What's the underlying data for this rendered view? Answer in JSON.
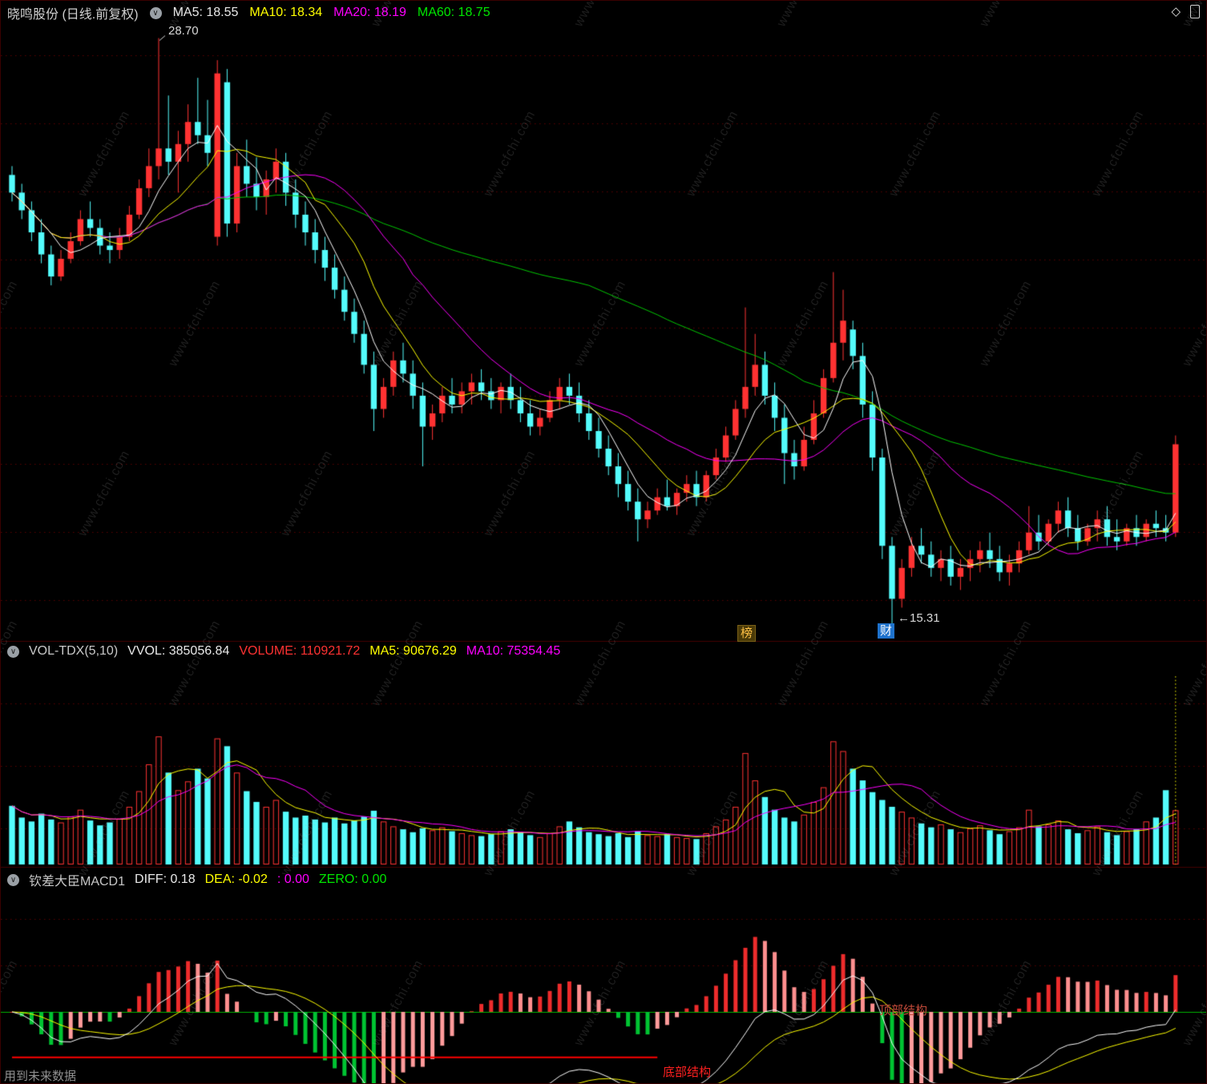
{
  "watermark": "www.cfchi.com",
  "icons": {
    "collapse": "∨",
    "diamond": "◇"
  },
  "main_header": {
    "title": "晓鸣股份 (日线.前复权)",
    "items": [
      {
        "label": "MA5: 18.55",
        "color": "#e8e8e8"
      },
      {
        "label": "MA10: 18.34",
        "color": "#ffff00"
      },
      {
        "label": "MA20: 18.19",
        "color": "#ff00ff"
      },
      {
        "label": "MA60: 18.75",
        "color": "#00e600"
      }
    ]
  },
  "volume_header": {
    "items": [
      {
        "label": "VOL-TDX(5,10)",
        "color": "#c8c8c8"
      },
      {
        "label": "VVOL: 385056.84",
        "color": "#e8e8e8"
      },
      {
        "label": "VOLUME: 110921.72",
        "color": "#ff3232"
      },
      {
        "label": "MA5: 90676.29",
        "color": "#ffff00"
      },
      {
        "label": "MA10: 75354.45",
        "color": "#ff00ff"
      }
    ]
  },
  "macd_header": {
    "items": [
      {
        "label": "钦差大臣MACD1",
        "color": "#c8c8c8"
      },
      {
        "label": "DIFF: 0.18",
        "color": "#e8e8e8"
      },
      {
        "label": "DEA: -0.02",
        "color": "#ffff00"
      },
      {
        "label": ": 0.00",
        "color": "#ff00ff"
      },
      {
        "label": "ZERO: 0.00",
        "color": "#00e600"
      }
    ]
  },
  "overlays": {
    "high_label": "28.70",
    "low_label": "←15.31",
    "badge_rank": "榜",
    "badge_finance": "财",
    "bottom_structure": "底部结构",
    "top_structure": "顶部结构",
    "future_data_note": "用到未来数据"
  },
  "colors": {
    "background": "#000000",
    "grid": "#5c0000",
    "separator": "#460000",
    "up": "#ff3232",
    "down": "#54fcfc",
    "ma5": "#ffffff",
    "ma10": "#ffff00",
    "ma20": "#ff00ff",
    "ma60": "#00c800",
    "vol_ma5": "#ffff00",
    "vol_ma10": "#ff00ff",
    "vvol_line": "#ffff00",
    "hist_pos_rise": "#ee2c2c",
    "hist_pos_fall": "#ff8f8f",
    "hist_neg_fall": "#00c432",
    "hist_neg_rise": "#ff9c9c",
    "diff_line": "#ffffff",
    "dea_line": "#ffff00",
    "zero_line": "#00b400",
    "structure_line": "#ff0000",
    "annotation": "#d8d8d8"
  },
  "chart_data": [
    {
      "type": "candlestick",
      "title": "晓鸣股份 日线 前复权",
      "ylim": [
        15.1,
        29.0
      ],
      "ma_periods": [
        5,
        10,
        20,
        60
      ],
      "ma_values": {
        "ma5": 18.55,
        "ma10": 18.34,
        "ma20": 18.19,
        "ma60": 18.75
      },
      "annotations": [
        {
          "index": 15,
          "price": 28.7,
          "text": "28.70",
          "pos": "high"
        },
        {
          "index": 90,
          "price": 15.31,
          "text": "15.31",
          "pos": "low"
        }
      ],
      "event_badges": [
        {
          "index": 75,
          "text": "榜"
        },
        {
          "index": 89,
          "text": "财"
        }
      ],
      "ohlc": [
        [
          25.6,
          25.8,
          25.0,
          25.2
        ],
        [
          25.2,
          25.4,
          24.6,
          24.8
        ],
        [
          24.8,
          25.0,
          24.1,
          24.3
        ],
        [
          24.3,
          24.6,
          23.6,
          23.8
        ],
        [
          23.8,
          24.0,
          23.1,
          23.3
        ],
        [
          23.3,
          23.9,
          23.2,
          23.7
        ],
        [
          23.7,
          24.3,
          23.6,
          24.1
        ],
        [
          24.1,
          24.8,
          24.0,
          24.6
        ],
        [
          24.6,
          25.0,
          24.2,
          24.4
        ],
        [
          24.4,
          24.6,
          23.8,
          24.0
        ],
        [
          24.0,
          24.3,
          23.6,
          23.9
        ],
        [
          23.9,
          24.4,
          23.7,
          24.2
        ],
        [
          24.2,
          24.9,
          24.1,
          24.7
        ],
        [
          24.7,
          25.5,
          24.6,
          25.3
        ],
        [
          25.3,
          26.2,
          25.1,
          25.8
        ],
        [
          25.8,
          28.7,
          25.5,
          26.2
        ],
        [
          26.2,
          27.4,
          25.6,
          25.9
        ],
        [
          25.9,
          26.6,
          25.2,
          26.3
        ],
        [
          26.3,
          27.2,
          25.9,
          26.8
        ],
        [
          26.8,
          27.8,
          26.3,
          26.5
        ],
        [
          26.5,
          27.3,
          25.8,
          26.1
        ],
        [
          24.2,
          28.2,
          24.0,
          27.9
        ],
        [
          27.7,
          28.0,
          24.2,
          24.5
        ],
        [
          24.5,
          26.1,
          24.3,
          25.8
        ],
        [
          25.8,
          26.4,
          25.1,
          25.4
        ],
        [
          25.4,
          26.0,
          24.8,
          25.1
        ],
        [
          25.1,
          25.7,
          24.7,
          25.5
        ],
        [
          25.5,
          26.2,
          25.2,
          25.9
        ],
        [
          25.9,
          26.1,
          24.9,
          25.2
        ],
        [
          25.2,
          25.5,
          24.4,
          24.7
        ],
        [
          24.7,
          25.0,
          24.0,
          24.3
        ],
        [
          24.3,
          24.6,
          23.6,
          23.9
        ],
        [
          23.9,
          24.2,
          23.2,
          23.5
        ],
        [
          23.5,
          23.8,
          22.8,
          23.0
        ],
        [
          23.0,
          23.3,
          22.3,
          22.5
        ],
        [
          22.5,
          22.8,
          21.8,
          22.0
        ],
        [
          22.0,
          22.3,
          21.1,
          21.3
        ],
        [
          21.3,
          21.6,
          19.8,
          20.3
        ],
        [
          20.3,
          21.0,
          20.1,
          20.8
        ],
        [
          20.8,
          21.6,
          20.6,
          21.4
        ],
        [
          21.4,
          21.8,
          20.9,
          21.1
        ],
        [
          21.1,
          21.4,
          20.3,
          20.6
        ],
        [
          20.6,
          20.9,
          19.0,
          19.9
        ],
        [
          19.9,
          20.4,
          19.6,
          20.2
        ],
        [
          20.2,
          20.8,
          20.0,
          20.6
        ],
        [
          20.6,
          21.0,
          20.2,
          20.4
        ],
        [
          20.4,
          20.9,
          20.2,
          20.7
        ],
        [
          20.7,
          21.1,
          20.4,
          20.9
        ],
        [
          20.9,
          21.2,
          20.5,
          20.7
        ],
        [
          20.7,
          21.0,
          20.3,
          20.5
        ],
        [
          20.5,
          20.9,
          20.2,
          20.8
        ],
        [
          20.8,
          21.1,
          20.3,
          20.5
        ],
        [
          20.5,
          20.8,
          20.0,
          20.2
        ],
        [
          20.2,
          20.5,
          19.7,
          19.9
        ],
        [
          19.9,
          20.3,
          19.7,
          20.1
        ],
        [
          20.1,
          20.7,
          20.0,
          20.5
        ],
        [
          20.5,
          21.0,
          20.3,
          20.8
        ],
        [
          20.8,
          21.1,
          20.4,
          20.6
        ],
        [
          20.6,
          20.9,
          20.0,
          20.2
        ],
        [
          20.2,
          20.5,
          19.6,
          19.8
        ],
        [
          19.8,
          20.1,
          19.2,
          19.4
        ],
        [
          19.4,
          19.7,
          18.8,
          19.0
        ],
        [
          19.0,
          19.3,
          18.3,
          18.6
        ],
        [
          18.6,
          18.9,
          18.0,
          18.2
        ],
        [
          18.2,
          18.5,
          17.3,
          17.8
        ],
        [
          17.8,
          18.2,
          17.6,
          18.0
        ],
        [
          18.0,
          18.5,
          17.9,
          18.3
        ],
        [
          18.3,
          18.7,
          18.0,
          18.1
        ],
        [
          18.1,
          18.5,
          17.9,
          18.4
        ],
        [
          18.4,
          18.8,
          18.2,
          18.6
        ],
        [
          18.6,
          18.9,
          18.1,
          18.3
        ],
        [
          18.3,
          18.9,
          18.2,
          18.8
        ],
        [
          18.8,
          19.4,
          18.7,
          19.2
        ],
        [
          19.2,
          19.9,
          19.1,
          19.7
        ],
        [
          19.7,
          20.5,
          19.6,
          20.3
        ],
        [
          20.3,
          22.6,
          20.1,
          20.8
        ],
        [
          20.8,
          22.0,
          20.6,
          21.3
        ],
        [
          21.3,
          21.6,
          20.4,
          20.6
        ],
        [
          20.6,
          20.9,
          19.8,
          20.1
        ],
        [
          20.1,
          20.4,
          18.6,
          19.3
        ],
        [
          19.3,
          19.6,
          18.7,
          19.0
        ],
        [
          19.0,
          19.9,
          18.9,
          19.6
        ],
        [
          19.6,
          20.5,
          19.5,
          20.2
        ],
        [
          20.2,
          21.2,
          20.1,
          21.0
        ],
        [
          21.0,
          23.4,
          20.9,
          21.8
        ],
        [
          21.8,
          23.0,
          21.4,
          22.3
        ],
        [
          22.1,
          22.3,
          21.2,
          21.5
        ],
        [
          21.5,
          21.8,
          20.1,
          20.4
        ],
        [
          20.4,
          20.7,
          18.9,
          19.2
        ],
        [
          19.2,
          19.4,
          16.9,
          17.2
        ],
        [
          17.2,
          17.4,
          15.31,
          16.0
        ],
        [
          16.0,
          16.9,
          15.8,
          16.7
        ],
        [
          16.7,
          17.4,
          16.5,
          17.2
        ],
        [
          17.2,
          17.6,
          16.8,
          17.0
        ],
        [
          17.0,
          17.3,
          16.5,
          16.7
        ],
        [
          16.7,
          17.1,
          16.4,
          16.9
        ],
        [
          16.9,
          17.2,
          16.3,
          16.5
        ],
        [
          16.5,
          16.9,
          16.2,
          16.7
        ],
        [
          16.7,
          17.1,
          16.4,
          16.9
        ],
        [
          16.9,
          17.3,
          16.6,
          17.1
        ],
        [
          17.1,
          17.5,
          16.7,
          16.9
        ],
        [
          16.9,
          17.2,
          16.4,
          16.6
        ],
        [
          16.6,
          17.0,
          16.3,
          16.8
        ],
        [
          16.8,
          17.3,
          16.6,
          17.1
        ],
        [
          17.1,
          18.1,
          17.0,
          17.5
        ],
        [
          17.5,
          17.9,
          17.1,
          17.3
        ],
        [
          17.3,
          17.8,
          17.2,
          17.7
        ],
        [
          17.7,
          18.2,
          17.5,
          18.0
        ],
        [
          18.0,
          18.3,
          17.4,
          17.6
        ],
        [
          17.6,
          17.9,
          17.1,
          17.3
        ],
        [
          17.3,
          17.7,
          17.2,
          17.6
        ],
        [
          17.6,
          18.0,
          17.3,
          17.8
        ],
        [
          17.8,
          18.1,
          17.2,
          17.4
        ],
        [
          17.4,
          17.8,
          17.1,
          17.3
        ],
        [
          17.3,
          17.7,
          17.2,
          17.6
        ],
        [
          17.6,
          17.9,
          17.2,
          17.4
        ],
        [
          17.4,
          17.8,
          17.3,
          17.7
        ],
        [
          17.7,
          18.0,
          17.4,
          17.6
        ],
        [
          17.6,
          17.9,
          17.3,
          17.5
        ],
        [
          17.5,
          19.7,
          17.4,
          19.5
        ]
      ]
    },
    {
      "type": "bar",
      "name": "VOL-TDX(5,10)",
      "vvol": 385056.84,
      "volume": 110921.72,
      "ma5": 90676.29,
      "ma10": 75354.45,
      "ma_periods": [
        5,
        10
      ],
      "ylim": [
        0,
        400000
      ],
      "values": [
        120000,
        96000,
        88000,
        104000,
        92000,
        86000,
        98000,
        112000,
        90000,
        80000,
        86000,
        94000,
        118000,
        150000,
        205000,
        262000,
        188000,
        152000,
        170000,
        196000,
        176000,
        258000,
        242000,
        188000,
        150000,
        128000,
        118000,
        132000,
        108000,
        96000,
        100000,
        92000,
        86000,
        96000,
        84000,
        90000,
        98000,
        110000,
        88000,
        78000,
        72000,
        66000,
        74000,
        70000,
        76000,
        68000,
        64000,
        60000,
        58000,
        62000,
        68000,
        72000,
        66000,
        60000,
        56000,
        64000,
        78000,
        88000,
        76000,
        66000,
        62000,
        58000,
        64000,
        56000,
        68000,
        60000,
        58000,
        62000,
        56000,
        54000,
        52000,
        64000,
        78000,
        92000,
        118000,
        228000,
        172000,
        138000,
        112000,
        96000,
        88000,
        102000,
        128000,
        158000,
        252000,
        232000,
        196000,
        172000,
        148000,
        132000,
        118000,
        108000,
        96000,
        84000,
        76000,
        82000,
        72000,
        66000,
        74000,
        80000,
        70000,
        62000,
        68000,
        76000,
        112000,
        78000,
        82000,
        90000,
        72000,
        64000,
        70000,
        78000,
        66000,
        60000,
        68000,
        72000,
        88000,
        96000,
        152000,
        110922
      ]
    },
    {
      "type": "macd",
      "name": "钦差大臣MACD1",
      "diff": 0.18,
      "dea": -0.02,
      "macd": 0.0,
      "zero": 0.0,
      "params": [
        12,
        26,
        9
      ],
      "derive_from": "close",
      "structure_line": {
        "label": "底部结构",
        "from_index": 0,
        "to_index": 66,
        "neg_frac": 0.63
      },
      "top_structure_label": "顶部结构",
      "future_note": "用到未来数据"
    }
  ]
}
